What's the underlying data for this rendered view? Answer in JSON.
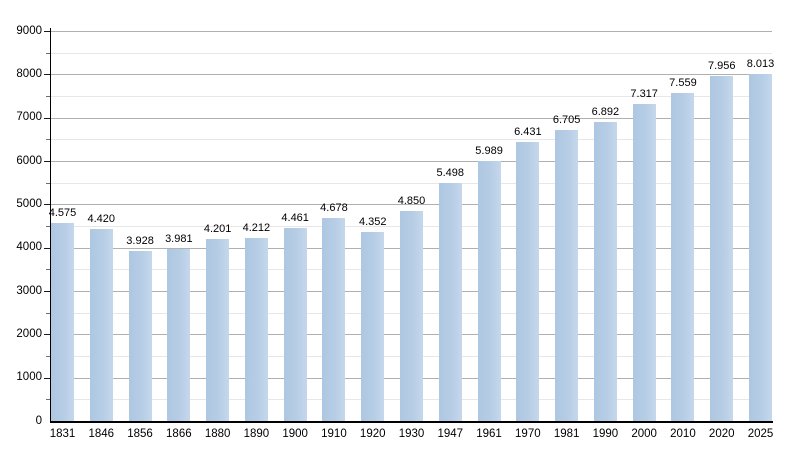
{
  "chart_data": {
    "type": "bar",
    "categories": [
      "1831",
      "1846",
      "1856",
      "1866",
      "1880",
      "1890",
      "1900",
      "1910",
      "1920",
      "1930",
      "1947",
      "1961",
      "1970",
      "1981",
      "1990",
      "2000",
      "2010",
      "2020",
      "2025"
    ],
    "values": [
      4575,
      4420,
      3928,
      3981,
      4201,
      4212,
      4461,
      4678,
      4352,
      4850,
      5498,
      5989,
      6431,
      6705,
      6892,
      7317,
      7559,
      7956,
      8013
    ],
    "value_labels": [
      "4.575",
      "4.420",
      "3.928",
      "3.981",
      "4.201",
      "4.212",
      "4.461",
      "4.678",
      "4.352",
      "4.850",
      "5.498",
      "5.989",
      "6.431",
      "6.705",
      "6.892",
      "7.317",
      "7.559",
      "7.956",
      "8.013"
    ],
    "ylim": [
      0,
      9000
    ],
    "y_major_step": 1000,
    "y_minor_step": 500,
    "y_tick_labels": [
      "0",
      "1000",
      "2000",
      "3000",
      "4000",
      "5000",
      "6000",
      "7000",
      "8000",
      "9000"
    ],
    "grid": true,
    "legend": false,
    "value_labels_shown": true
  },
  "colors": {
    "bar_left": "#aec7e2",
    "bar_mid": "#b6cde5",
    "bar_right": "#c5d7ec",
    "grid_major": "#b0b0b0",
    "grid_minor": "#e7e7e7",
    "axis": "#000000",
    "text": "#000000",
    "background": "#ffffff"
  }
}
